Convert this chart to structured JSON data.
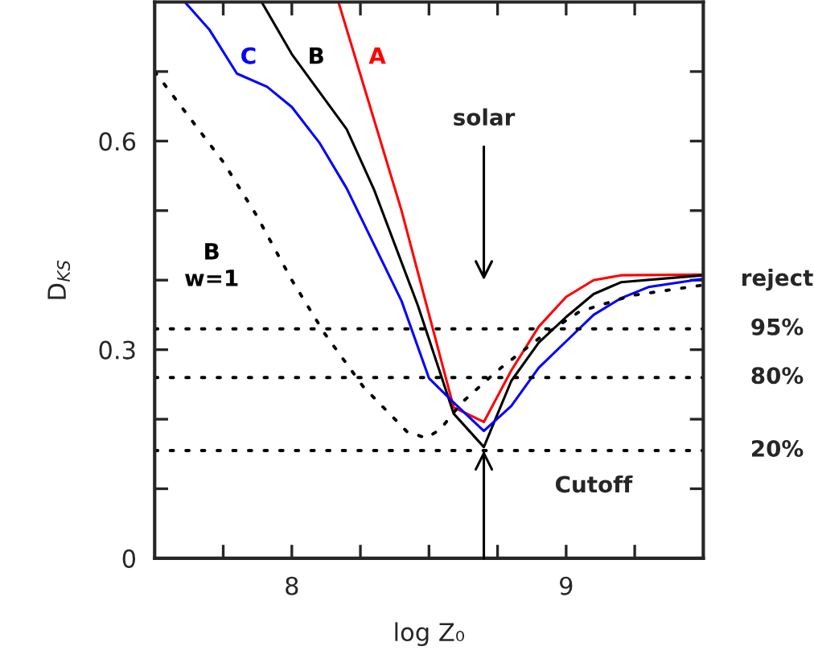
{
  "chart_data": {
    "type": "line",
    "xlabel": "log Z₀",
    "ylabel": "D$_{KS}$",
    "xlim": [
      7.5,
      9.5
    ],
    "xticks": [
      {
        "value": 7.75,
        "label": null
      },
      8,
      {
        "value": 8.25,
        "label": null
      },
      {
        "value": 8.5,
        "label": null
      },
      {
        "value": 8.75,
        "label": null
      },
      9,
      {
        "value": 9.25,
        "label": null
      }
    ],
    "ylim": [
      0,
      0.8
    ],
    "yticks": [
      0,
      {
        "value": 0.1,
        "label": null
      },
      {
        "value": 0.2,
        "label": null
      },
      0.3,
      {
        "value": 0.4,
        "label": null
      },
      {
        "value": 0.5,
        "label": null
      },
      0.6,
      {
        "value": 0.7,
        "label": null
      }
    ],
    "grid": false,
    "legend": false,
    "series": [
      {
        "name": "A",
        "color": "#ff0000",
        "line_style": "solid",
        "x": [
          8.17,
          8.4,
          8.59,
          8.7,
          8.8,
          8.9,
          9.0,
          9.1,
          9.2,
          9.5
        ],
        "values": [
          0.8,
          0.5,
          0.217,
          0.196,
          0.27,
          0.333,
          0.376,
          0.4,
          0.407,
          0.408
        ]
      },
      {
        "name": "B",
        "color": "#000000",
        "line_style": "solid",
        "x": [
          7.89,
          8.0,
          8.2,
          8.3,
          8.46,
          8.59,
          8.7,
          8.8,
          8.9,
          9.0,
          9.1,
          9.2,
          9.5
        ],
        "values": [
          0.8,
          0.725,
          0.617,
          0.53,
          0.363,
          0.208,
          0.16,
          0.255,
          0.31,
          0.347,
          0.38,
          0.397,
          0.407
        ]
      },
      {
        "name": "C",
        "color": "#0000ff",
        "line_style": "solid",
        "x": [
          7.61,
          7.7,
          7.8,
          7.91,
          8.0,
          8.1,
          8.2,
          8.3,
          8.4,
          8.5,
          8.59,
          8.7,
          8.8,
          8.9,
          9.0,
          9.1,
          9.2,
          9.3,
          9.5
        ],
        "values": [
          0.8,
          0.76,
          0.697,
          0.678,
          0.649,
          0.598,
          0.532,
          0.451,
          0.37,
          0.259,
          0.224,
          0.183,
          0.219,
          0.274,
          0.312,
          0.35,
          0.374,
          0.39,
          0.402
        ]
      },
      {
        "name": "B\nw=1",
        "color": "#000000",
        "line_style": "dotted",
        "x": [
          7.5,
          7.75,
          7.87,
          8.0,
          8.12,
          8.26,
          8.42,
          8.49,
          8.54,
          8.62,
          8.75,
          8.9,
          9.05,
          9.24,
          9.5
        ],
        "values": [
          0.7,
          0.57,
          0.494,
          0.4,
          0.323,
          0.247,
          0.182,
          0.173,
          0.185,
          0.224,
          0.27,
          0.316,
          0.355,
          0.378,
          0.393
        ]
      }
    ],
    "ref_lines": [
      {
        "axis": "y",
        "value": 0.33,
        "color": "#000000",
        "line_style": "dotted"
      },
      {
        "axis": "y",
        "value": 0.26,
        "color": "#000000",
        "line_style": "dotted"
      },
      {
        "axis": "y",
        "value": 0.155,
        "color": "#000000",
        "line_style": "dotted"
      }
    ],
    "annotations": [
      "reject",
      "95%",
      "80%",
      "20%",
      {
        "text": "Cutoff",
        "x": 9.1,
        "y": 0.155
      },
      "solar"
    ]
  }
}
